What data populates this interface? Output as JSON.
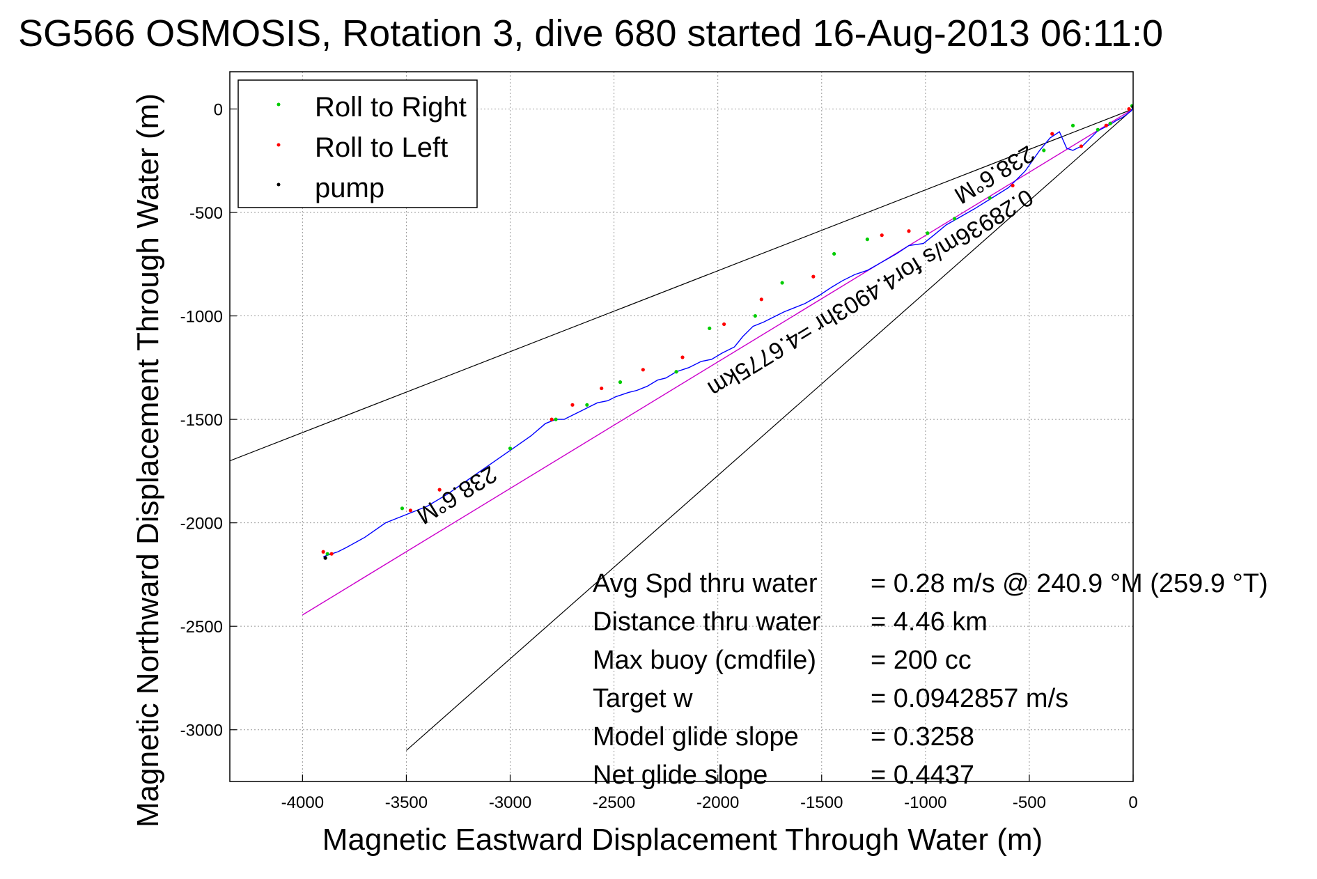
{
  "chart_data": {
    "type": "line",
    "title": "SG566 OSMOSIS, Rotation 3, dive 680 started 16-Aug-2013 06:11:0",
    "xlabel": "Magnetic Eastward Displacement Through Water (m)",
    "ylabel": "Magnetic Northward Displacement Through Water (m)",
    "xlim": [
      -4350,
      0
    ],
    "ylim": [
      -3250,
      180
    ],
    "xticks": [
      -4000,
      -3500,
      -3000,
      -2500,
      -2000,
      -1500,
      -1000,
      -500,
      0
    ],
    "yticks": [
      0,
      -500,
      -1000,
      -1500,
      -2000,
      -2500,
      -3000
    ],
    "grid": true,
    "legend_position": "top-left",
    "legend": [
      "Roll to Right",
      "Roll to Left",
      "pump"
    ],
    "colors": {
      "track": "#0000ff",
      "roll_right": "#00cc00",
      "roll_left": "#ff0000",
      "pump": "#000000",
      "heading_line": "#cc00cc",
      "bounds": "#000000"
    },
    "track": {
      "x": [
        0,
        -10,
        -30,
        -50,
        -80,
        -110,
        -150,
        -175,
        -200,
        -240,
        -290,
        -320,
        -355,
        -400,
        -450,
        -520,
        -600,
        -680,
        -760,
        -830,
        -900,
        -960,
        -1010,
        -1080,
        -1140,
        -1210,
        -1280,
        -1340,
        -1400,
        -1450,
        -1510,
        -1580,
        -1630,
        -1680,
        -1720,
        -1780,
        -1830,
        -1880,
        -1920,
        -1980,
        -2030,
        -2080,
        -2140,
        -2200,
        -2250,
        -2290,
        -2340,
        -2390,
        -2430,
        -2490,
        -2530,
        -2580,
        -2620,
        -2660,
        -2700,
        -2740,
        -2780,
        -2830,
        -2900,
        -3000,
        -3100,
        -3200,
        -3300,
        -3400,
        -3500,
        -3600,
        -3700,
        -3790,
        -3830,
        -3860,
        -3890,
        -3900
      ],
      "y": [
        10,
        -10,
        -25,
        -40,
        -55,
        -75,
        -95,
        -110,
        -135,
        -175,
        -200,
        -190,
        -110,
        -140,
        -200,
        -300,
        -380,
        -430,
        -480,
        -520,
        -560,
        -610,
        -650,
        -660,
        -700,
        -740,
        -780,
        -800,
        -830,
        -860,
        -900,
        -940,
        -960,
        -980,
        -1000,
        -1030,
        -1050,
        -1100,
        -1150,
        -1180,
        -1210,
        -1220,
        -1250,
        -1270,
        -1300,
        -1310,
        -1340,
        -1360,
        -1370,
        -1390,
        -1410,
        -1420,
        -1440,
        -1460,
        -1480,
        -1500,
        -1500,
        -1520,
        -1580,
        -1650,
        -1720,
        -1790,
        -1860,
        -1920,
        -1960,
        -2000,
        -2070,
        -2120,
        -2140,
        -2150,
        -2160,
        -2165
      ]
    },
    "roll_right_points": [
      [
        -5,
        15
      ],
      [
        -110,
        -70
      ],
      [
        -170,
        -100
      ],
      [
        -290,
        -80
      ],
      [
        -430,
        -200
      ],
      [
        -690,
        -430
      ],
      [
        -860,
        -530
      ],
      [
        -990,
        -600
      ],
      [
        -1280,
        -630
      ],
      [
        -1440,
        -700
      ],
      [
        -1690,
        -840
      ],
      [
        -1820,
        -1000
      ],
      [
        -2040,
        -1060
      ],
      [
        -2200,
        -1270
      ],
      [
        -2470,
        -1320
      ],
      [
        -2630,
        -1430
      ],
      [
        -2780,
        -1500
      ],
      [
        -3000,
        -1640
      ],
      [
        -3520,
        -1930
      ],
      [
        -3880,
        -2150
      ]
    ],
    "roll_left_points": [
      [
        -20,
        0
      ],
      [
        -130,
        -80
      ],
      [
        -250,
        -180
      ],
      [
        -390,
        -120
      ],
      [
        -580,
        -370
      ],
      [
        -1080,
        -590
      ],
      [
        -1210,
        -610
      ],
      [
        -1540,
        -810
      ],
      [
        -1790,
        -920
      ],
      [
        -1970,
        -1040
      ],
      [
        -2170,
        -1200
      ],
      [
        -2360,
        -1260
      ],
      [
        -2560,
        -1350
      ],
      [
        -2700,
        -1430
      ],
      [
        -2800,
        -1500
      ],
      [
        -3340,
        -1840
      ],
      [
        -3480,
        -1940
      ],
      [
        -3860,
        -2150
      ],
      [
        -3900,
        -2140
      ]
    ],
    "pump_points": [
      [
        0,
        10
      ],
      [
        -3890,
        -2170
      ]
    ],
    "heading_line": {
      "x": [
        0,
        -4000
      ],
      "y": [
        0,
        -2445
      ]
    },
    "bound_upper": {
      "x": [
        0,
        -4400
      ],
      "y": [
        0,
        -1720
      ]
    },
    "bound_lower": {
      "x": [
        0,
        -3500
      ],
      "y": [
        0,
        -3100
      ]
    },
    "annotations": {
      "heading_upper": "238.6°M",
      "heading_lower": "238.6°M",
      "diagonal": "0.28936m/s for4.4903hr =4.6775km"
    },
    "stats": [
      {
        "label": "Avg Spd thru water",
        "value": "=  0.28 m/s @ 240.9 °M (259.9 °T)"
      },
      {
        "label": "Distance thru water",
        "value": "=  4.46 km"
      },
      {
        "label": "Max buoy (cmdfile)",
        "value": "= 200 cc"
      },
      {
        "label": "Target w",
        "value": "= 0.0942857 m/s"
      },
      {
        "label": "Model glide slope",
        "value": "= 0.3258"
      },
      {
        "label": "Net glide slope",
        "value": "= 0.4437"
      }
    ]
  }
}
